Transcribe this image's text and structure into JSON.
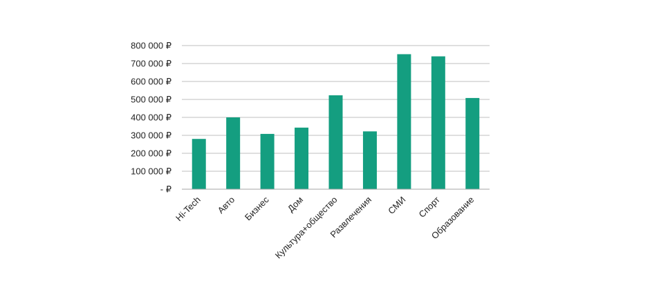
{
  "chart_data": {
    "type": "bar",
    "categories": [
      "Hi-Tech",
      "Авто",
      "Бизнес",
      "Дом",
      "Культура+общество",
      "Развлечения",
      "СМИ",
      "Спорт",
      "Образование"
    ],
    "values": [
      280000,
      400000,
      308000,
      343000,
      523000,
      322000,
      752000,
      740000,
      508000
    ],
    "ylim": [
      0,
      800000
    ],
    "y_ticks": [
      0,
      100000,
      200000,
      300000,
      400000,
      500000,
      600000,
      700000,
      800000
    ],
    "y_tick_labels": [
      "-  ₽",
      "100 000 ₽",
      "200 000 ₽",
      "300 000 ₽",
      "400 000 ₽",
      "500 000 ₽",
      "600 000 ₽",
      "700 000 ₽",
      "800 000 ₽"
    ],
    "bar_color": "#149e80",
    "grid": true,
    "legend": "none"
  }
}
